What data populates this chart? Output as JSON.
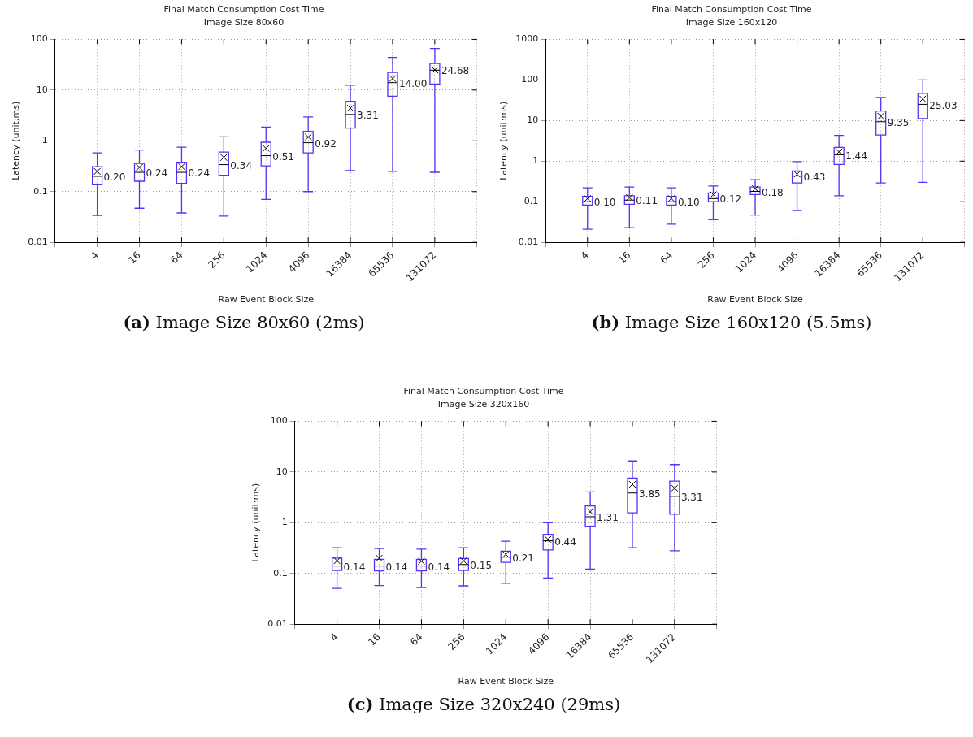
{
  "chart_data": [
    {
      "type": "box",
      "title": "Final Match Consumption Cost Time",
      "subtitle": "Image Size 80x60",
      "xlabel": "Raw Event Block Size",
      "ylabel": "Latency (unit:ms)",
      "categories": [
        "4",
        "16",
        "64",
        "256",
        "1024",
        "4096",
        "16384",
        "65536",
        "131072"
      ],
      "color": "#5b2ff5",
      "log": "y",
      "ylim": [
        0.01,
        100
      ],
      "yticks": [
        0.01,
        0.1,
        1,
        10,
        100
      ],
      "grid": true,
      "marker": "cross",
      "boxes": [
        {
          "low": 0.034,
          "q1": 0.137,
          "median": 0.2,
          "q3": 0.31,
          "high": 0.58,
          "mean": 0.25
        },
        {
          "low": 0.047,
          "q1": 0.16,
          "median": 0.24,
          "q3": 0.36,
          "high": 0.66,
          "mean": 0.3
        },
        {
          "low": 0.038,
          "q1": 0.145,
          "median": 0.24,
          "q3": 0.38,
          "high": 0.75,
          "mean": 0.31
        },
        {
          "low": 0.033,
          "q1": 0.21,
          "median": 0.34,
          "q3": 0.6,
          "high": 1.2,
          "mean": 0.47
        },
        {
          "low": 0.07,
          "q1": 0.32,
          "median": 0.51,
          "q3": 0.94,
          "high": 1.87,
          "mean": 0.71
        },
        {
          "low": 0.1,
          "q1": 0.58,
          "median": 0.92,
          "q3": 1.54,
          "high": 2.95,
          "mean": 1.19
        },
        {
          "low": 0.26,
          "q1": 1.78,
          "median": 3.31,
          "q3": 6,
          "high": 12.5,
          "mean": 4.4
        },
        {
          "low": 0.25,
          "q1": 7.6,
          "median": 14,
          "q3": 22.4,
          "high": 44,
          "mean": 16.9
        },
        {
          "low": 0.24,
          "q1": 13.2,
          "median": 24.68,
          "q3": 33.5,
          "high": 66,
          "mean": 25
        }
      ],
      "annotations": [
        {
          "text": "0.20",
          "x": "4",
          "y": 0.2
        },
        {
          "text": "0.24",
          "x": "16",
          "y": 0.24
        },
        {
          "text": "0.24",
          "x": "64",
          "y": 0.24
        },
        {
          "text": "0.34",
          "x": "256",
          "y": 0.34
        },
        {
          "text": "0.51",
          "x": "1024",
          "y": 0.51
        },
        {
          "text": "0.92",
          "x": "4096",
          "y": 0.92
        },
        {
          "text": "3.31",
          "x": "16384",
          "y": 3.31
        },
        {
          "text": "14.00",
          "x": "65536",
          "y": 14
        },
        {
          "text": "24.68",
          "x": "131072",
          "y": 24.68
        },
        "(a) Image Size 80x60 (2ms)"
      ]
    },
    {
      "type": "box",
      "title": "Final Match Consumption Cost Time",
      "subtitle": "Image Size 160x120",
      "xlabel": "Raw Event Block Size",
      "ylabel": "Latency (unit:ms)",
      "categories": [
        "4",
        "16",
        "64",
        "256",
        "1024",
        "4096",
        "16384",
        "65536",
        "131072"
      ],
      "color": "#5b2ff5",
      "log": "y",
      "ylim": [
        0.01,
        1000
      ],
      "yticks": [
        0.01,
        0.1,
        1,
        10,
        100,
        1000
      ],
      "grid": true,
      "marker": "cross",
      "boxes": [
        {
          "low": 0.021,
          "q1": 0.083,
          "median": 0.1,
          "q3": 0.135,
          "high": 0.22,
          "mean": 0.12
        },
        {
          "low": 0.023,
          "q1": 0.087,
          "median": 0.11,
          "q3": 0.14,
          "high": 0.23,
          "mean": 0.127
        },
        {
          "low": 0.028,
          "q1": 0.083,
          "median": 0.1,
          "q3": 0.135,
          "high": 0.22,
          "mean": 0.12
        },
        {
          "low": 0.036,
          "q1": 0.1,
          "median": 0.12,
          "q3": 0.165,
          "high": 0.245,
          "mean": 0.15
        },
        {
          "low": 0.047,
          "q1": 0.15,
          "median": 0.18,
          "q3": 0.23,
          "high": 0.35,
          "mean": 0.21
        },
        {
          "low": 0.061,
          "q1": 0.29,
          "median": 0.43,
          "q3": 0.57,
          "high": 0.97,
          "mean": 0.48
        },
        {
          "low": 0.141,
          "q1": 0.83,
          "median": 1.44,
          "q3": 2.18,
          "high": 4.3,
          "mean": 1.7
        },
        {
          "low": 0.29,
          "q1": 4.4,
          "median": 9.35,
          "q3": 17.2,
          "high": 37,
          "mean": 12.8
        },
        {
          "low": 0.3,
          "q1": 11.2,
          "median": 25.03,
          "q3": 47,
          "high": 100,
          "mean": 34
        }
      ],
      "annotations": [
        {
          "text": "0.10",
          "x": "4",
          "y": 0.1
        },
        {
          "text": "0.11",
          "x": "16",
          "y": 0.11
        },
        {
          "text": "0.10",
          "x": "64",
          "y": 0.1
        },
        {
          "text": "0.12",
          "x": "256",
          "y": 0.12
        },
        {
          "text": "0.18",
          "x": "1024",
          "y": 0.18
        },
        {
          "text": "0.43",
          "x": "4096",
          "y": 0.43
        },
        {
          "text": "1.44",
          "x": "16384",
          "y": 1.44
        },
        {
          "text": "9.35",
          "x": "65536",
          "y": 9.35
        },
        {
          "text": "25.03",
          "x": "131072",
          "y": 25.03
        },
        "(b) Image Size 160x120 (5.5ms)"
      ]
    },
    {
      "type": "box",
      "title": "Final Match Consumption Cost Time",
      "subtitle": "Image Size 320x160",
      "xlabel": "Raw Event Block Size",
      "ylabel": "Latency (unit:ms)",
      "categories": [
        "4",
        "16",
        "64",
        "256",
        "1024",
        "4096",
        "16384",
        "65536",
        "131072"
      ],
      "color": "#5b2ff5",
      "log": "y",
      "ylim": [
        0.01,
        100
      ],
      "yticks": [
        0.01,
        0.1,
        1,
        10,
        100
      ],
      "grid": true,
      "marker": "cross",
      "boxes": [
        {
          "low": 0.051,
          "q1": 0.115,
          "median": 0.14,
          "q3": 0.2,
          "high": 0.32,
          "mean": 0.178
        },
        {
          "low": 0.058,
          "q1": 0.112,
          "median": 0.14,
          "q3": 0.19,
          "high": 0.31,
          "mean": 0.2
        },
        {
          "low": 0.053,
          "q1": 0.112,
          "median": 0.14,
          "q3": 0.19,
          "high": 0.3,
          "mean": 0.174
        },
        {
          "low": 0.057,
          "q1": 0.115,
          "median": 0.15,
          "q3": 0.197,
          "high": 0.32,
          "mean": 0.178
        },
        {
          "low": 0.064,
          "q1": 0.165,
          "median": 0.21,
          "q3": 0.275,
          "high": 0.43,
          "mean": 0.237
        },
        {
          "low": 0.081,
          "q1": 0.29,
          "median": 0.44,
          "q3": 0.59,
          "high": 1,
          "mean": 0.47
        },
        {
          "low": 0.122,
          "q1": 0.85,
          "median": 1.31,
          "q3": 2.14,
          "high": 4.06,
          "mean": 1.65
        },
        {
          "low": 0.32,
          "q1": 1.57,
          "median": 3.85,
          "q3": 7.6,
          "high": 16.5,
          "mean": 5.7
        },
        {
          "low": 0.28,
          "q1": 1.47,
          "median": 3.31,
          "q3": 6.6,
          "high": 14,
          "mean": 4.8
        }
      ],
      "annotations": [
        {
          "text": "0.14",
          "x": "4",
          "y": 0.14
        },
        {
          "text": "0.14",
          "x": "16",
          "y": 0.14
        },
        {
          "text": "0.14",
          "x": "64",
          "y": 0.14
        },
        {
          "text": "0.15",
          "x": "256",
          "y": 0.15
        },
        {
          "text": "0.21",
          "x": "1024",
          "y": 0.21
        },
        {
          "text": "0.44",
          "x": "4096",
          "y": 0.44
        },
        {
          "text": "1.31",
          "x": "16384",
          "y": 1.31
        },
        {
          "text": "3.85",
          "x": "65536",
          "y": 3.85
        },
        {
          "text": "3.31",
          "x": "131072",
          "y": 3.31
        },
        "(c) Image Size 320x240 (29ms)"
      ]
    }
  ]
}
